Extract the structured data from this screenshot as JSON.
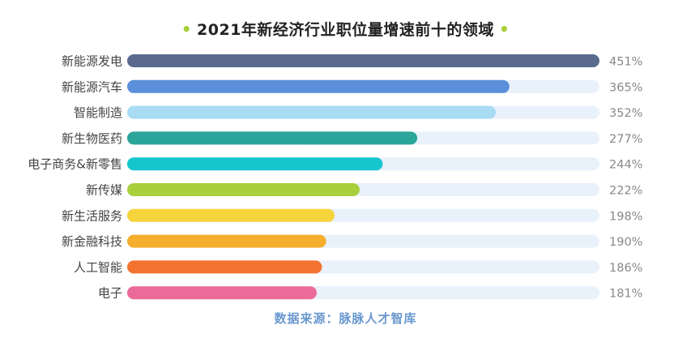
{
  "chart_data": {
    "type": "bar",
    "orientation": "horizontal",
    "title": "2021年新经济行业职位量增速前十的领域",
    "categories": [
      "新能源发电",
      "新能源汽车",
      "智能制造",
      "新生物医药",
      "电子商务&新零售",
      "新传媒",
      "新生活服务",
      "新金融科技",
      "人工智能",
      "电子"
    ],
    "values": [
      451,
      365,
      352,
      277,
      244,
      222,
      198,
      190,
      186,
      181
    ],
    "value_labels": [
      "451%",
      "365%",
      "352%",
      "277%",
      "244%",
      "222%",
      "198%",
      "190%",
      "186%",
      "181%"
    ],
    "unit": "%",
    "xlim": [
      0,
      451
    ],
    "grid": false,
    "legend": "none",
    "bar_colors": [
      "#5a6a8e",
      "#5b8fdc",
      "#a8dcf3",
      "#2aa59a",
      "#15c6cd",
      "#a9cf3a",
      "#f6d43c",
      "#f6ae2f",
      "#f47331",
      "#ec6a98"
    ],
    "track_color": "#e9f1fb",
    "label_color": "#444444",
    "value_color": "#888888"
  },
  "title_dot": "•",
  "source": "数据来源：脉脉人才智库"
}
